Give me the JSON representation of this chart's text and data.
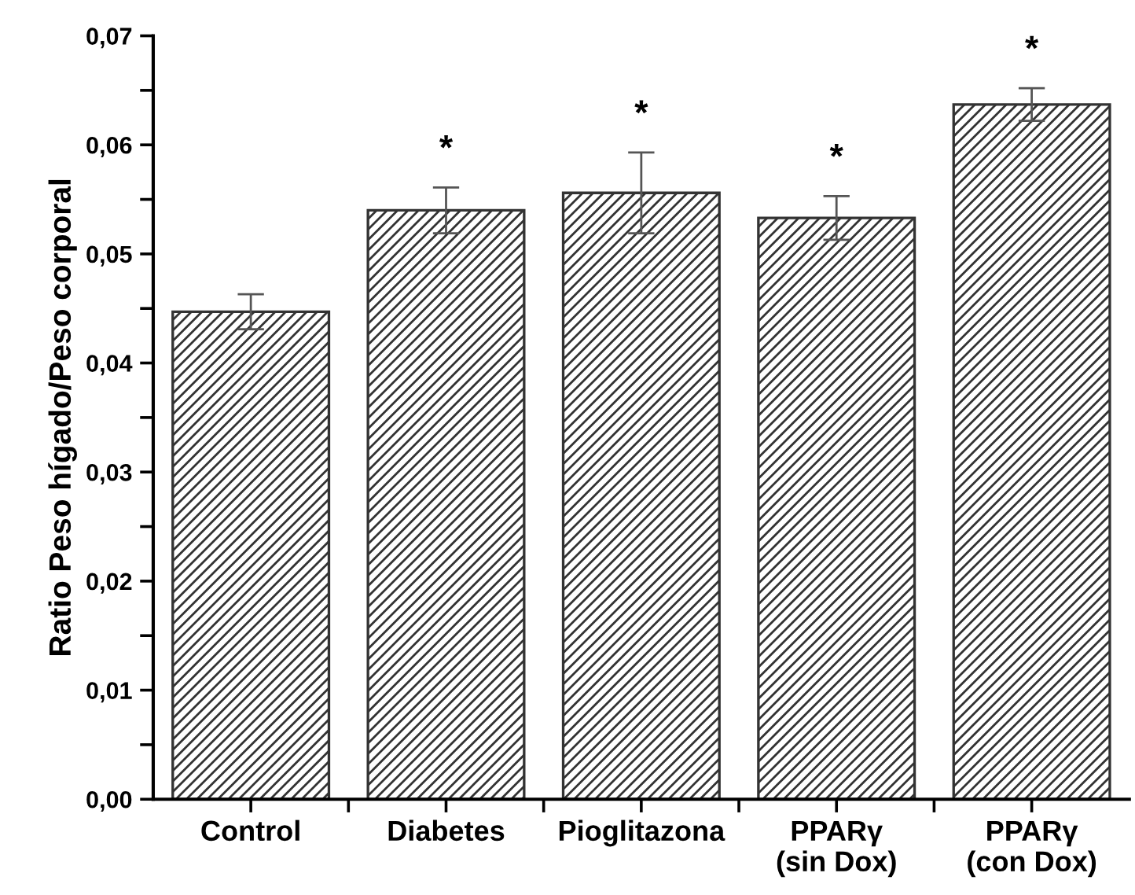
{
  "chart_data": {
    "type": "bar",
    "ylabel": "Ratio Peso hígado/Peso corporal",
    "categories": [
      "Control",
      "Diabetes",
      "Pioglitazona",
      "PPARγ\n(sin Dox)",
      "PPARγ\n(con Dox)"
    ],
    "values": [
      0.0447,
      0.054,
      0.0556,
      0.0533,
      0.0637
    ],
    "errors": [
      0.0016,
      0.0021,
      0.0037,
      0.002,
      0.0015
    ],
    "color": "#333333",
    "ylim": [
      0,
      0.07
    ],
    "yticks": [
      {
        "value": 0,
        "label": "0,00"
      },
      {
        "value": 0.005,
        "label": null
      },
      {
        "value": 0.01,
        "label": "0,01"
      },
      {
        "value": 0.015,
        "label": null
      },
      {
        "value": 0.02,
        "label": "0,02"
      },
      {
        "value": 0.025,
        "label": null
      },
      {
        "value": 0.03,
        "label": "0,03"
      },
      {
        "value": 0.035,
        "label": null
      },
      {
        "value": 0.04,
        "label": "0,04"
      },
      {
        "value": 0.045,
        "label": null
      },
      {
        "value": 0.05,
        "label": "0,05"
      },
      {
        "value": 0.055,
        "label": null
      },
      {
        "value": 0.06,
        "label": "0,06"
      },
      {
        "value": 0.065,
        "label": null
      },
      {
        "value": 0.07,
        "label": "0,07"
      }
    ],
    "annotations": [
      {
        "text": "*",
        "x": "Diabetes",
        "y": 0.0561
      },
      {
        "text": "*",
        "x": "Pioglitazona",
        "y": 0.0593
      },
      {
        "text": "*",
        "x": "PPARγ\n(sin Dox)",
        "y": 0.0553
      },
      {
        "text": "*",
        "x": "PPARγ\n(con Dox)",
        "y": 0.0652
      }
    ],
    "grid": false,
    "legend": false
  }
}
